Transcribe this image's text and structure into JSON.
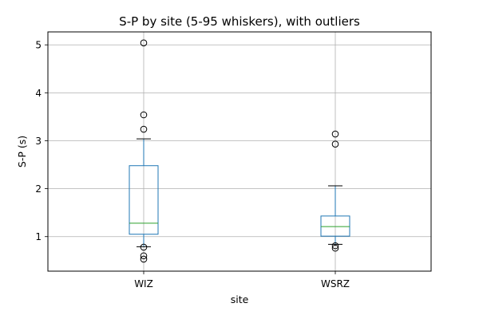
{
  "chart_data": {
    "type": "box",
    "title": "S-P by site (5-95 whiskers), with outliers",
    "xlabel": "site",
    "ylabel": "S-P (s)",
    "ylim": [
      0.28,
      5.27
    ],
    "yticks": [
      1,
      2,
      3,
      4,
      5
    ],
    "grid": true,
    "legend": "none",
    "categories": [
      "WIZ",
      "WSRZ"
    ],
    "boxes": [
      {
        "category": "WIZ",
        "whisker_low": 0.79,
        "q1": 1.05,
        "median": 1.28,
        "q3": 2.48,
        "whisker_high": 3.04,
        "outliers": [
          0.53,
          0.6,
          0.78,
          3.24,
          3.54,
          5.04
        ]
      },
      {
        "category": "WSRZ",
        "whisker_low": 0.84,
        "q1": 1.01,
        "median": 1.21,
        "q3": 1.43,
        "whisker_high": 2.06,
        "outliers": [
          0.76,
          0.81,
          2.93,
          3.14
        ]
      }
    ],
    "colors": {
      "box": "#1f77b4",
      "median": "#2ca02c",
      "whisker": "#1f77b4",
      "cap": "#000000",
      "grid": "#b0b0b0",
      "outlier": "#000000"
    }
  }
}
